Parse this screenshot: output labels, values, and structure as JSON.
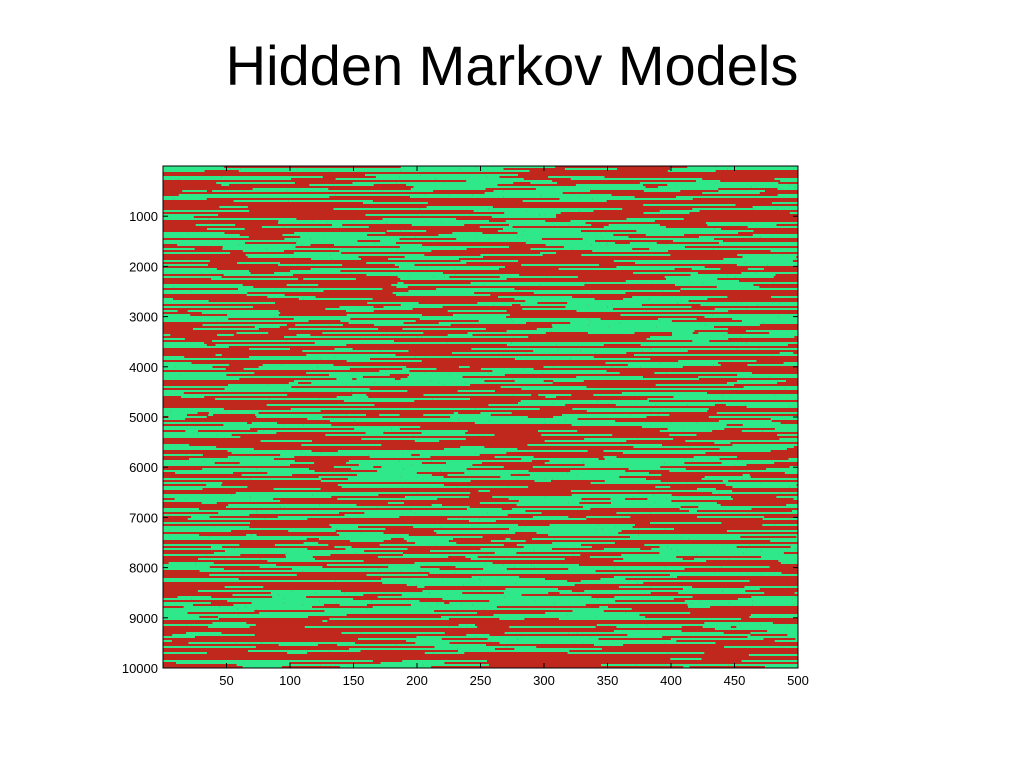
{
  "slide": {
    "title": "Hidden Markov Models"
  },
  "chart_data": {
    "type": "heatmap",
    "title": "",
    "xlabel": "",
    "ylabel": "",
    "xlim": [
      0,
      500
    ],
    "ylim": [
      0,
      10000
    ],
    "y_axis_direction": "reversed (0 at top, 10000 at bottom)",
    "x_ticks": [
      50,
      100,
      150,
      200,
      250,
      300,
      350,
      400,
      450,
      500
    ],
    "y_ticks": [
      1000,
      2000,
      3000,
      4000,
      5000,
      6000,
      7000,
      8000,
      9000,
      10000
    ],
    "x_tick_labels": [
      "50",
      "100",
      "150",
      "200",
      "250",
      "300",
      "350",
      "400",
      "450",
      "500"
    ],
    "y_tick_labels": [
      "1000",
      "2000",
      "3000",
      "4000",
      "5000",
      "6000",
      "7000",
      "8000",
      "9000",
      "10000"
    ],
    "states": [
      "state-1",
      "state-2"
    ],
    "colors": {
      "state-1": "#c0281e",
      "state-2": "#2ee88a"
    },
    "grid": false,
    "legend": "none",
    "values_note": "Binary hidden-state grid: 10000 rows × 500 columns of alternating red/green horizontal runs; individual cell values are not readable from the image."
  }
}
